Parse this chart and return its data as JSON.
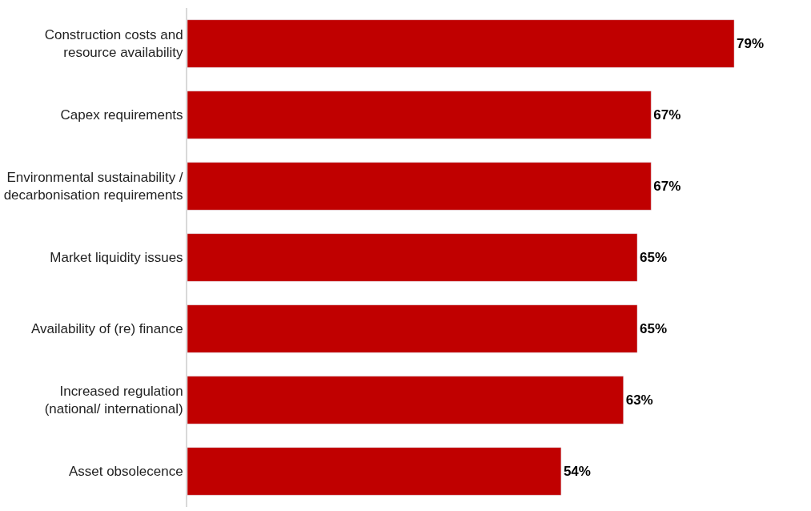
{
  "chart_data": {
    "type": "bar",
    "orientation": "horizontal",
    "categories": [
      "Construction costs and resource availability",
      "Capex requirements",
      "Environmental sustainability / decarbonisation requirements",
      "Market liquidity issues",
      "Availability of (re) finance",
      "Increased regulation (national/ international)",
      "Asset obsolecence"
    ],
    "values": [
      79,
      67,
      67,
      65,
      65,
      63,
      54
    ],
    "value_labels": [
      "79%",
      "67%",
      "67%",
      "65%",
      "65%",
      "63%",
      "54%"
    ],
    "color": "#c00000"
  }
}
